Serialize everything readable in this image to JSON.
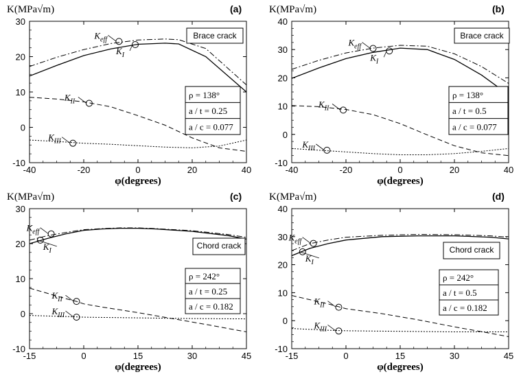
{
  "chart_data": [
    {
      "panel": "(a)",
      "type": "line",
      "ylabel": "K(MPa√m)",
      "xlabel": "φ(degrees)",
      "xlim": [
        -40,
        40
      ],
      "ylim": [
        -10,
        30
      ],
      "xticks": [
        -40,
        -20,
        0,
        20,
        40
      ],
      "yticks": [
        -10,
        0,
        10,
        20,
        30
      ],
      "crack_label": "Brace crack",
      "params": [
        "ρ = 138°",
        "a / t = 0.25",
        "a / c = 0.077"
      ],
      "series": [
        {
          "name": "K_I",
          "style": "solid",
          "x": [
            -40,
            -30,
            -20,
            -10,
            0,
            10,
            15,
            25,
            40
          ],
          "y": [
            14.5,
            17.5,
            20.3,
            22.2,
            23.5,
            23.8,
            23.6,
            20.0,
            10.0
          ]
        },
        {
          "name": "K_eff",
          "style": "dashdot",
          "x": [
            -40,
            -30,
            -20,
            -10,
            0,
            10,
            15,
            25,
            40
          ],
          "y": [
            17.2,
            19.8,
            22.0,
            23.7,
            24.7,
            25.0,
            24.8,
            22.3,
            12.0
          ]
        },
        {
          "name": "K_II",
          "style": "dashed",
          "x": [
            -40,
            -30,
            -20,
            -10,
            0,
            10,
            20,
            30,
            40
          ],
          "y": [
            8.5,
            8.0,
            7.2,
            5.8,
            3.3,
            0.6,
            -3.0,
            -5.8,
            -6.8
          ]
        },
        {
          "name": "K_III",
          "style": "dotted",
          "x": [
            -40,
            -30,
            -20,
            -10,
            0,
            10,
            20,
            30,
            40
          ],
          "y": [
            -3.6,
            -4.0,
            -4.5,
            -4.8,
            -5.2,
            -5.6,
            -5.8,
            -5.3,
            -3.6
          ]
        }
      ],
      "markers": [
        {
          "series": "K_eff",
          "label": "K_eff",
          "x": -7,
          "y": 24.3
        },
        {
          "series": "K_I",
          "label": "K_I",
          "x": -1,
          "y": 23.4
        },
        {
          "series": "K_II",
          "label": "K_II",
          "x": -18,
          "y": 6.8
        },
        {
          "series": "K_III",
          "label": "K_III",
          "x": -24,
          "y": -4.5
        }
      ]
    },
    {
      "panel": "(b)",
      "type": "line",
      "ylabel": "K(MPa√m)",
      "xlabel": "φ(degrees)",
      "xlim": [
        -40,
        40
      ],
      "ylim": [
        -10,
        40
      ],
      "xticks": [
        -40,
        -20,
        0,
        20,
        40
      ],
      "yticks": [
        -10,
        0,
        10,
        20,
        30,
        40
      ],
      "crack_label": "Brace crack",
      "params": [
        "ρ = 138°",
        "a / t = 0.5",
        "a / c = 0.077"
      ],
      "series": [
        {
          "name": "K_I",
          "style": "solid",
          "x": [
            -40,
            -30,
            -20,
            -10,
            0,
            10,
            20,
            30,
            40
          ],
          "y": [
            19.8,
            23.5,
            26.8,
            29.0,
            30.5,
            30.0,
            26.5,
            21.0,
            14.0
          ]
        },
        {
          "name": "K_eff",
          "style": "dashdot",
          "x": [
            -40,
            -30,
            -20,
            -10,
            0,
            10,
            20,
            30,
            40
          ],
          "y": [
            23.0,
            26.2,
            28.8,
            30.5,
            31.5,
            31.2,
            28.5,
            24.0,
            18.0
          ]
        },
        {
          "name": "K_II",
          "style": "dashed",
          "x": [
            -40,
            -30,
            -20,
            -10,
            0,
            10,
            20,
            30,
            40
          ],
          "y": [
            10.2,
            9.8,
            8.8,
            7.0,
            3.8,
            -0.2,
            -4.0,
            -6.5,
            -7.5
          ]
        },
        {
          "name": "K_III",
          "style": "dotted",
          "x": [
            -40,
            -30,
            -20,
            -10,
            0,
            10,
            20,
            30,
            40
          ],
          "y": [
            -5.0,
            -5.6,
            -6.2,
            -6.8,
            -7.2,
            -7.2,
            -6.8,
            -6.0,
            -5.0
          ]
        }
      ],
      "markers": [
        {
          "series": "K_eff",
          "label": "K_eff",
          "x": -10,
          "y": 30.4
        },
        {
          "series": "K_I",
          "label": "K_I",
          "x": -4,
          "y": 29.5
        },
        {
          "series": "K_II",
          "label": "K_II",
          "x": -21,
          "y": 8.6
        },
        {
          "series": "K_III",
          "label": "K_III",
          "x": -27,
          "y": -5.6
        }
      ]
    },
    {
      "panel": "(c)",
      "type": "line",
      "ylabel": "K(MPa√m)",
      "xlabel": "φ(degrees)",
      "xlim": [
        -15,
        45
      ],
      "ylim": [
        -10,
        30
      ],
      "xticks": [
        -15,
        0,
        15,
        30,
        45
      ],
      "yticks": [
        -10,
        0,
        10,
        20,
        30
      ],
      "crack_label": "Chord crack",
      "params": [
        "ρ = 242°",
        "a / t = 0.25",
        "a / c = 0.182"
      ],
      "series": [
        {
          "name": "K_I",
          "style": "solid",
          "x": [
            -15,
            -10,
            -5,
            0,
            5,
            10,
            15,
            20,
            30,
            40,
            45
          ],
          "y": [
            20.0,
            21.5,
            22.8,
            23.8,
            24.2,
            24.4,
            24.4,
            24.2,
            23.5,
            22.3,
            21.3
          ]
        },
        {
          "name": "K_eff",
          "style": "dashdot",
          "x": [
            -15,
            -10,
            -5,
            0,
            5,
            10,
            15,
            20,
            30,
            40,
            45
          ],
          "y": [
            21.0,
            22.3,
            23.2,
            24.0,
            24.3,
            24.5,
            24.5,
            24.3,
            23.7,
            22.6,
            21.8
          ]
        },
        {
          "name": "K_II",
          "style": "dashed",
          "x": [
            -15,
            -10,
            -5,
            -2,
            0,
            5,
            15,
            25,
            35,
            45
          ],
          "y": [
            7.3,
            5.8,
            4.3,
            3.5,
            2.8,
            1.9,
            0.3,
            -1.5,
            -3.3,
            -5.2
          ]
        },
        {
          "name": "K_III",
          "style": "dotted",
          "x": [
            -15,
            -5,
            0,
            15,
            30,
            45
          ],
          "y": [
            -0.5,
            -0.8,
            -1.0,
            -1.2,
            -1.4,
            -1.5
          ]
        }
      ],
      "markers": [
        {
          "series": "K_eff",
          "label": "K_eff",
          "x": -9,
          "y": 22.8
        },
        {
          "series": "K_I",
          "label": "K_I",
          "x": -12,
          "y": 21.0
        },
        {
          "series": "K_II",
          "label": "K_II",
          "x": -2,
          "y": 3.5
        },
        {
          "series": "K_III",
          "label": "K_III",
          "x": -2,
          "y": -1.0
        }
      ]
    },
    {
      "panel": "(d)",
      "type": "line",
      "ylabel": "K(MPa√m)",
      "xlabel": "φ(degrees)",
      "xlim": [
        -15,
        45
      ],
      "ylim": [
        -10,
        40
      ],
      "xticks": [
        -15,
        0,
        15,
        30,
        45
      ],
      "yticks": [
        -10,
        0,
        10,
        20,
        30,
        40
      ],
      "crack_label": "Chord crack",
      "params": [
        "ρ = 242°",
        "a / t = 0.5",
        "a / c = 0.182"
      ],
      "series": [
        {
          "name": "K_I",
          "style": "solid",
          "x": [
            -15,
            -10,
            -5,
            0,
            10,
            20,
            30,
            40,
            45
          ],
          "y": [
            23.2,
            25.8,
            27.5,
            28.8,
            30.0,
            30.3,
            30.3,
            29.8,
            29.2
          ]
        },
        {
          "name": "K_eff",
          "style": "dashdot",
          "x": [
            -15,
            -10,
            -5,
            0,
            10,
            20,
            30,
            40,
            45
          ],
          "y": [
            25.0,
            27.5,
            28.8,
            29.8,
            30.5,
            30.8,
            30.7,
            30.3,
            29.8
          ]
        },
        {
          "name": "K_II",
          "style": "dashed",
          "x": [
            -15,
            -5,
            0,
            10,
            20,
            30,
            40,
            45
          ],
          "y": [
            9.0,
            6.0,
            4.3,
            2.5,
            0.3,
            -2.2,
            -4.5,
            -5.7
          ]
        },
        {
          "name": "K_III",
          "style": "dotted",
          "x": [
            -15,
            -5,
            0,
            15,
            30,
            45
          ],
          "y": [
            -2.8,
            -3.4,
            -3.6,
            -3.8,
            -4.0,
            -4.0
          ]
        }
      ],
      "markers": [
        {
          "series": "K_eff",
          "label": "K_eff",
          "x": -9,
          "y": 27.6
        },
        {
          "series": "K_I",
          "label": "K_I",
          "x": -12,
          "y": 24.6
        },
        {
          "series": "K_II",
          "label": "K_II",
          "x": -2,
          "y": 4.8
        },
        {
          "series": "K_III",
          "label": "K_III",
          "x": -2,
          "y": -3.7
        }
      ]
    }
  ]
}
